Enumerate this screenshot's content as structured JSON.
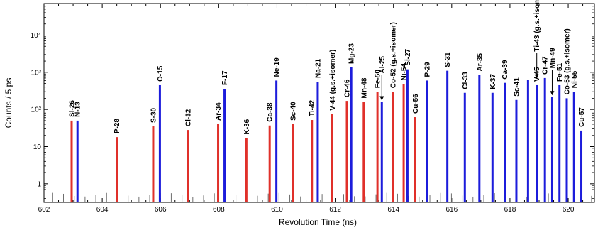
{
  "chart_data": {
    "type": "bar",
    "xlabel": "Revolution Time (ns)",
    "ylabel": "Counts / 5 ps",
    "xlim": [
      602,
      620.9
    ],
    "ylim_log10": [
      -0.5,
      4.85
    ],
    "y_scale": "log",
    "x_ticks": [
      602,
      604,
      606,
      608,
      610,
      612,
      614,
      616,
      618,
      620
    ],
    "x_tick_labels": [
      "602",
      "604",
      "606",
      "608",
      "610",
      "612",
      "614",
      "616",
      "618",
      "620"
    ],
    "y_ticks": [
      1,
      10,
      100,
      1000,
      10000
    ],
    "y_tick_labels": [
      "1",
      "10",
      "10²",
      "10³",
      "10⁴"
    ],
    "colors": {
      "red": "#e0302a",
      "blue": "#1c1cdb",
      "background": "#6e6e6e"
    },
    "peaks": [
      {
        "label": "Si-26",
        "x": 602.95,
        "y": 50,
        "color": "red"
      },
      {
        "label": "N-13",
        "x": 603.15,
        "y": 50,
        "color": "blue"
      },
      {
        "label": "P-28",
        "x": 604.5,
        "y": 18,
        "color": "red"
      },
      {
        "label": "S-30",
        "x": 605.75,
        "y": 35,
        "color": "red"
      },
      {
        "label": "O-15",
        "x": 605.98,
        "y": 450,
        "color": "blue"
      },
      {
        "label": "Cl-32",
        "x": 606.95,
        "y": 28,
        "color": "red"
      },
      {
        "label": "Ar-34",
        "x": 607.98,
        "y": 40,
        "color": "red"
      },
      {
        "label": "F-17",
        "x": 608.2,
        "y": 360,
        "color": "blue"
      },
      {
        "label": "K-36",
        "x": 608.95,
        "y": 17,
        "color": "red"
      },
      {
        "label": "Ca-38",
        "x": 609.75,
        "y": 37,
        "color": "red"
      },
      {
        "label": "Ne-19",
        "x": 609.98,
        "y": 600,
        "color": "blue"
      },
      {
        "label": "Sc-40",
        "x": 610.55,
        "y": 40,
        "color": "red"
      },
      {
        "label": "Ti-42",
        "x": 611.2,
        "y": 52,
        "color": "red"
      },
      {
        "label": "Na-21",
        "x": 611.4,
        "y": 560,
        "color": "blue"
      },
      {
        "label": "V-44 (g.s.+isomer)",
        "x": 611.9,
        "y": 75,
        "color": "red"
      },
      {
        "label": "Cr-46",
        "x": 612.4,
        "y": 170,
        "color": "red"
      },
      {
        "label": "Mg-23",
        "x": 612.55,
        "y": 1350,
        "color": "blue"
      },
      {
        "label": "Mn-48",
        "x": 612.98,
        "y": 160,
        "color": "red"
      },
      {
        "label": "Fe-50",
        "x": 613.45,
        "y": 300,
        "color": "red"
      },
      {
        "label": "Al-25",
        "x": 613.6,
        "y": 160,
        "color": "blue"
      },
      {
        "label": "Co-52 (g.s.+isomer)",
        "x": 613.98,
        "y": 300,
        "color": "red"
      },
      {
        "label": "Ni-54",
        "x": 614.35,
        "y": 480,
        "color": "red"
      },
      {
        "label": "Si-27",
        "x": 614.48,
        "y": 1200,
        "color": "blue"
      },
      {
        "label": "Cu-56",
        "x": 614.75,
        "y": 62,
        "color": "red"
      },
      {
        "label": "P-29",
        "x": 615.15,
        "y": 600,
        "color": "blue"
      },
      {
        "label": "S-31",
        "x": 615.85,
        "y": 1100,
        "color": "blue"
      },
      {
        "label": "Cl-33",
        "x": 616.45,
        "y": 280,
        "color": "blue"
      },
      {
        "label": "Ar-35",
        "x": 616.95,
        "y": 850,
        "color": "blue"
      },
      {
        "label": "K-37",
        "x": 617.4,
        "y": 280,
        "color": "blue"
      },
      {
        "label": "Ca-39",
        "x": 617.82,
        "y": 520,
        "color": "blue"
      },
      {
        "label": "Sc-41",
        "x": 618.22,
        "y": 180,
        "color": "blue"
      },
      {
        "label": "Ti-43 (g.s.+isomer)",
        "x": 618.62,
        "y": 620,
        "color": "blue"
      },
      {
        "label": "V-45",
        "x": 618.92,
        "y": 450,
        "color": "blue"
      },
      {
        "label": "Cr-47",
        "x": 619.2,
        "y": 700,
        "color": "blue"
      },
      {
        "label": "Mn-49",
        "x": 619.45,
        "y": 220,
        "color": "blue"
      },
      {
        "label": "Fe-51",
        "x": 619.7,
        "y": 450,
        "color": "blue"
      },
      {
        "label": "Co-53 (g.s.+isomer)",
        "x": 619.95,
        "y": 200,
        "color": "blue"
      },
      {
        "label": "Ni-55",
        "x": 620.2,
        "y": 300,
        "color": "blue"
      },
      {
        "label": "Cu-57",
        "x": 620.45,
        "y": 27,
        "color": "blue"
      }
    ],
    "annotations": [
      {
        "label": "Al-25",
        "x": 613.6
      },
      {
        "label": "Ti-43 (g.s.+isomer)",
        "x": 618.92
      },
      {
        "label": "Mn-49",
        "x": 619.45
      }
    ]
  }
}
